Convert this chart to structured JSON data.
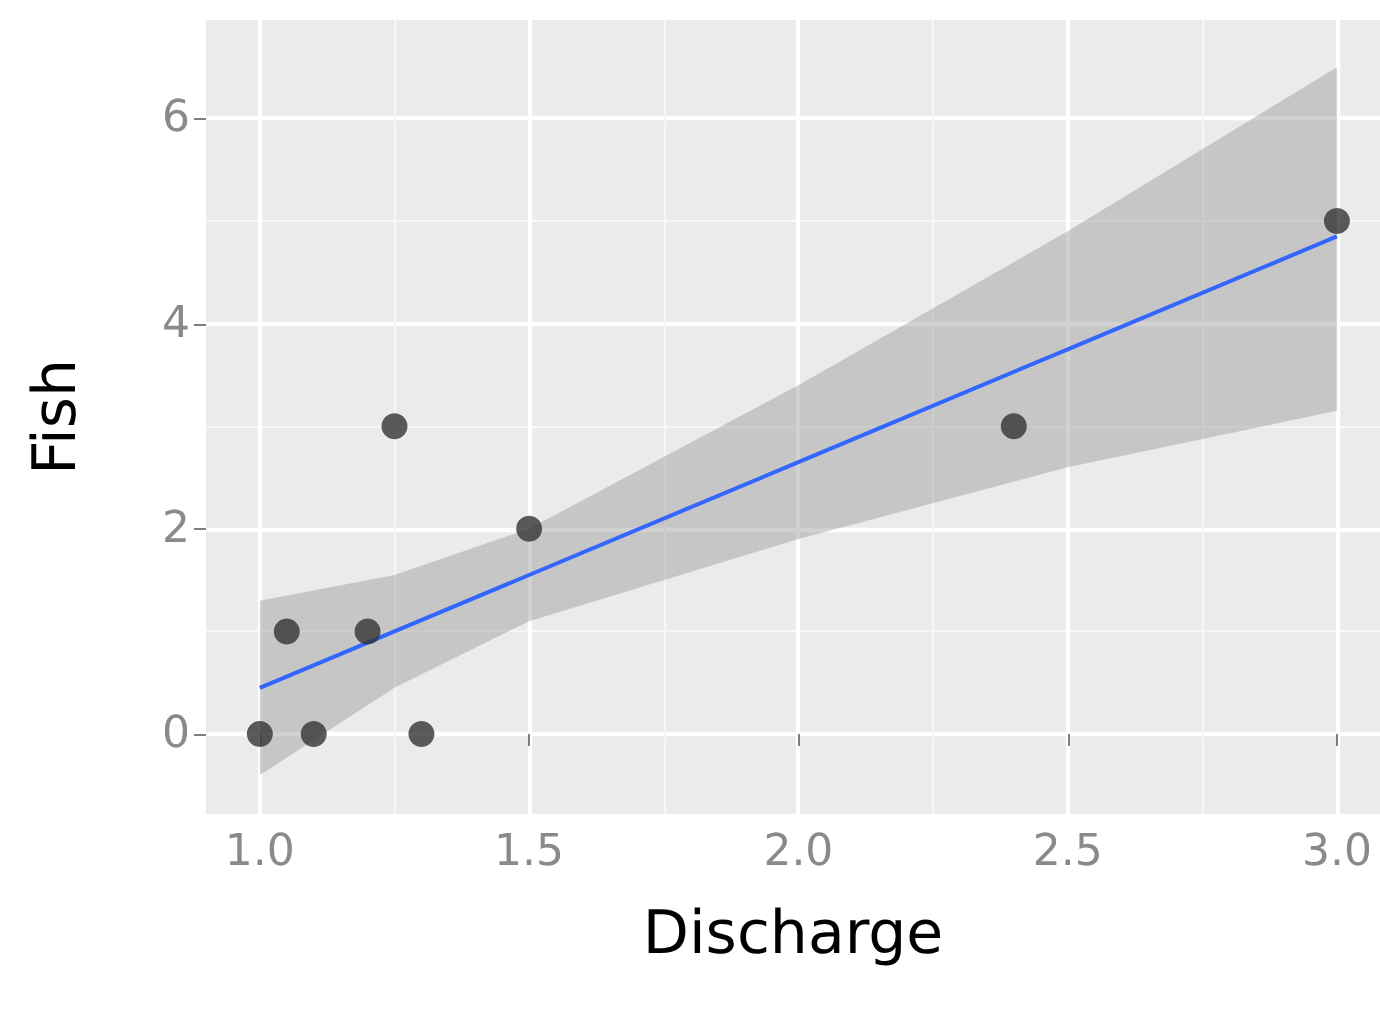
{
  "chart_data": {
    "type": "scatter",
    "xlabel": "Discharge",
    "ylabel": "Fish",
    "xlim": [
      0.9,
      3.08
    ],
    "ylim": [
      -0.78,
      6.96
    ],
    "xticks": [
      {
        "value": 1,
        "label": "1.0"
      },
      {
        "value": 1.5,
        "label": "1.5"
      },
      {
        "value": 2,
        "label": "2.0"
      },
      {
        "value": 2.5,
        "label": "2.5"
      },
      {
        "value": 3,
        "label": "3.0"
      }
    ],
    "yticks": [
      0,
      2,
      4,
      6
    ],
    "grid": true,
    "marker": "circle",
    "series": [
      {
        "color": "#333333",
        "x": [
          1.0,
          1.05,
          1.1,
          1.2,
          1.25,
          1.3,
          1.5,
          2.4,
          3.0
        ],
        "values": [
          0,
          1,
          0,
          1,
          3,
          0,
          2,
          3,
          5
        ]
      },
      {
        "type": "line",
        "marker": "none",
        "color": "#3366ff",
        "x": [
          1.0,
          1.25,
          1.5,
          2.0,
          2.5,
          3.0
        ],
        "values": [
          0.45,
          1.0,
          1.55,
          2.65,
          3.75,
          4.85
        ],
        "lower": [
          -0.4,
          0.45,
          1.1,
          1.9,
          2.6,
          3.15
        ],
        "upper": [
          1.3,
          1.55,
          2.0,
          3.4,
          4.9,
          6.5
        ]
      }
    ]
  }
}
